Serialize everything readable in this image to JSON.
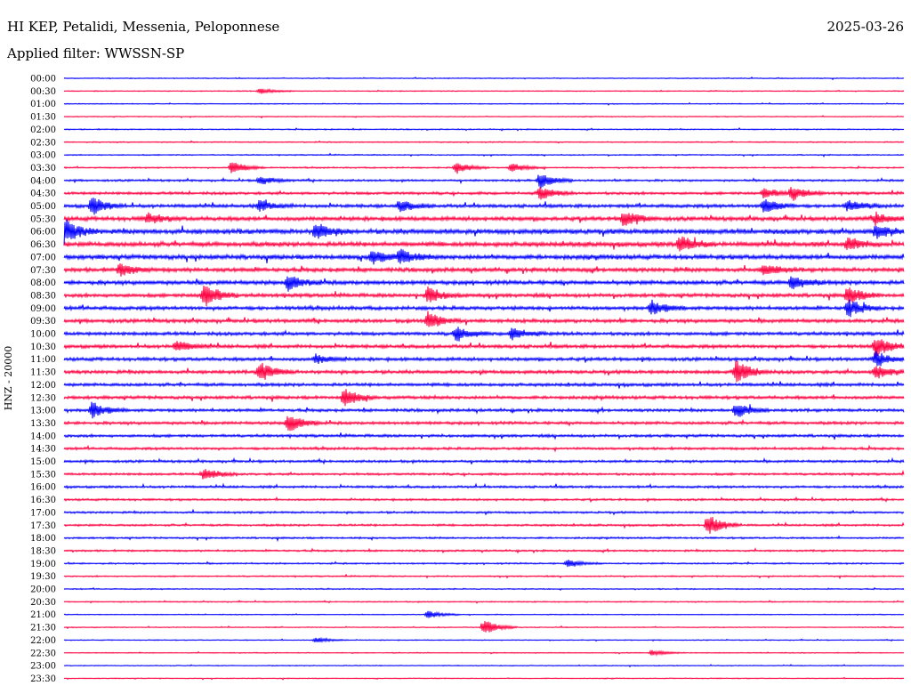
{
  "header": {
    "title": "HI KEP, Petalidi, Messenia, Peloponnese",
    "date": "2025-03-26",
    "filter": "Applied filter: WWSSN-SP"
  },
  "colors": {
    "blue": "#0000ff",
    "red": "#ff0040"
  },
  "chart_data": {
    "type": "line",
    "title": "HI KEP, Petalidi, Messenia, Peloponnese",
    "subtitle": "Applied filter: WWSSN-SP",
    "ylabel": "HNZ - 20000",
    "xlabel": "",
    "row_interval_minutes": 30,
    "row_labels": [
      "00:00",
      "00:30",
      "01:00",
      "01:30",
      "02:00",
      "02:30",
      "03:00",
      "03:30",
      "04:00",
      "04:30",
      "05:00",
      "05:30",
      "06:00",
      "06:30",
      "07:00",
      "07:30",
      "08:00",
      "08:30",
      "09:00",
      "09:30",
      "10:00",
      "10:30",
      "11:00",
      "11:30",
      "12:00",
      "12:30",
      "13:00",
      "13:30",
      "14:00",
      "14:30",
      "15:00",
      "15:30",
      "16:00",
      "16:30",
      "17:00",
      "17:30",
      "18:00",
      "18:30",
      "19:00",
      "19:30",
      "20:00",
      "20:30",
      "21:00",
      "21:30",
      "22:00",
      "22:30",
      "23:00",
      "23:30"
    ],
    "row_colors": [
      "blue",
      "red"
    ],
    "noise_level": [
      0.4,
      0.4,
      0.4,
      0.4,
      0.5,
      0.5,
      0.5,
      0.6,
      0.9,
      1.2,
      1.5,
      1.8,
      2.2,
      2.0,
      2.0,
      1.8,
      1.8,
      1.6,
      1.6,
      1.6,
      1.5,
      1.5,
      1.5,
      1.5,
      1.4,
      1.4,
      1.3,
      1.3,
      1.2,
      1.1,
      1.1,
      1.0,
      1.0,
      0.9,
      0.9,
      0.9,
      0.8,
      0.8,
      0.7,
      0.6,
      0.5,
      0.5,
      0.4,
      0.4,
      0.4,
      0.4,
      0.4,
      0.4
    ],
    "events": [
      {
        "row": 1,
        "minute": 7,
        "amp": 3
      },
      {
        "row": 7,
        "minute": 6,
        "amp": 8
      },
      {
        "row": 7,
        "minute": 14,
        "amp": 7
      },
      {
        "row": 7,
        "minute": 16,
        "amp": 5
      },
      {
        "row": 8,
        "minute": 17,
        "amp": 9
      },
      {
        "row": 8,
        "minute": 7,
        "amp": 5
      },
      {
        "row": 9,
        "minute": 17,
        "amp": 7
      },
      {
        "row": 9,
        "minute": 25,
        "amp": 6
      },
      {
        "row": 9,
        "minute": 26,
        "amp": 8
      },
      {
        "row": 10,
        "minute": 1,
        "amp": 10
      },
      {
        "row": 10,
        "minute": 7,
        "amp": 6
      },
      {
        "row": 10,
        "minute": 12,
        "amp": 6
      },
      {
        "row": 10,
        "minute": 25,
        "amp": 9
      },
      {
        "row": 10,
        "minute": 28,
        "amp": 6
      },
      {
        "row": 11,
        "minute": 20,
        "amp": 9
      },
      {
        "row": 11,
        "minute": 3,
        "amp": 6
      },
      {
        "row": 11,
        "minute": 29,
        "amp": 6
      },
      {
        "row": 12,
        "minute": 0,
        "amp": 14
      },
      {
        "row": 12,
        "minute": 9,
        "amp": 9
      },
      {
        "row": 12,
        "minute": 29,
        "amp": 8
      },
      {
        "row": 13,
        "minute": 22,
        "amp": 10
      },
      {
        "row": 13,
        "minute": 28,
        "amp": 7
      },
      {
        "row": 14,
        "minute": 11,
        "amp": 8
      },
      {
        "row": 14,
        "minute": 12,
        "amp": 8
      },
      {
        "row": 15,
        "minute": 2,
        "amp": 7
      },
      {
        "row": 15,
        "minute": 25,
        "amp": 7
      },
      {
        "row": 16,
        "minute": 8,
        "amp": 9
      },
      {
        "row": 16,
        "minute": 26,
        "amp": 8
      },
      {
        "row": 17,
        "minute": 5,
        "amp": 14
      },
      {
        "row": 17,
        "minute": 13,
        "amp": 9
      },
      {
        "row": 17,
        "minute": 28,
        "amp": 10
      },
      {
        "row": 18,
        "minute": 21,
        "amp": 8
      },
      {
        "row": 18,
        "minute": 28,
        "amp": 10
      },
      {
        "row": 19,
        "minute": 13,
        "amp": 10
      },
      {
        "row": 20,
        "minute": 14,
        "amp": 8
      },
      {
        "row": 20,
        "minute": 16,
        "amp": 7
      },
      {
        "row": 21,
        "minute": 4,
        "amp": 6
      },
      {
        "row": 21,
        "minute": 29,
        "amp": 11
      },
      {
        "row": 22,
        "minute": 9,
        "amp": 5
      },
      {
        "row": 22,
        "minute": 29,
        "amp": 8
      },
      {
        "row": 23,
        "minute": 7,
        "amp": 11
      },
      {
        "row": 23,
        "minute": 24,
        "amp": 13
      },
      {
        "row": 23,
        "minute": 29,
        "amp": 8
      },
      {
        "row": 25,
        "minute": 10,
        "amp": 10
      },
      {
        "row": 26,
        "minute": 1,
        "amp": 9
      },
      {
        "row": 26,
        "minute": 24,
        "amp": 9
      },
      {
        "row": 27,
        "minute": 8,
        "amp": 11
      },
      {
        "row": 31,
        "minute": 5,
        "amp": 7
      },
      {
        "row": 35,
        "minute": 23,
        "amp": 12
      },
      {
        "row": 38,
        "minute": 18,
        "amp": 4
      },
      {
        "row": 42,
        "minute": 13,
        "amp": 4
      },
      {
        "row": 43,
        "minute": 15,
        "amp": 9
      },
      {
        "row": 44,
        "minute": 9,
        "amp": 3
      },
      {
        "row": 45,
        "minute": 21,
        "amp": 3
      }
    ]
  }
}
